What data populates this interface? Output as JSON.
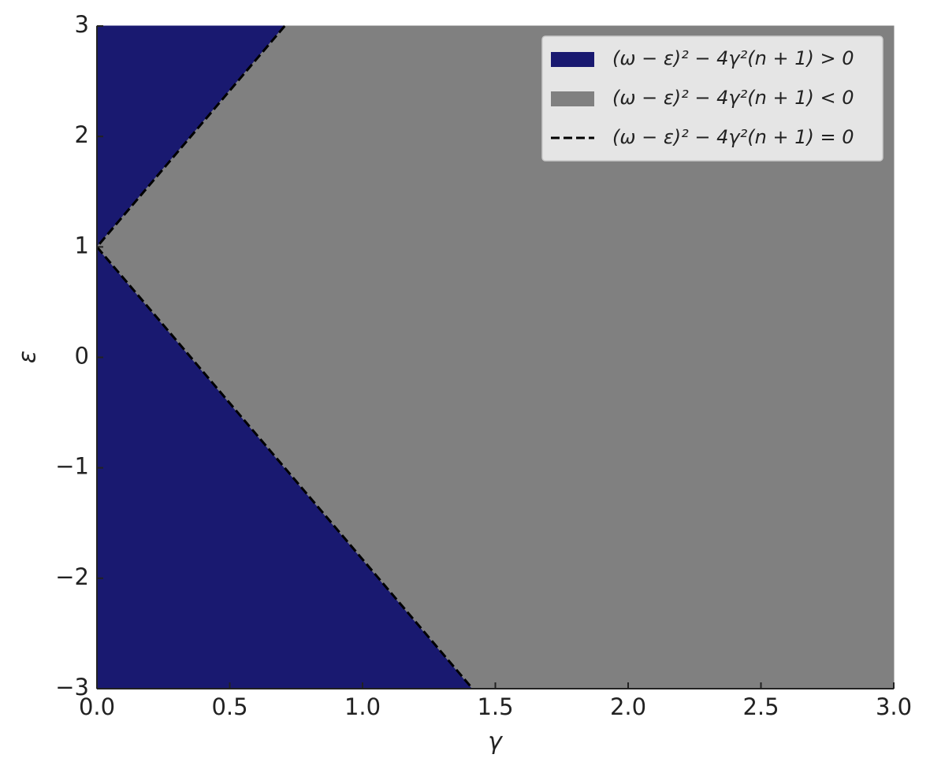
{
  "chart_data": {
    "type": "region",
    "xlabel": "γ",
    "ylabel": "ε",
    "xlim": [
      0,
      3
    ],
    "ylim": [
      -3,
      3
    ],
    "xticks": [
      {
        "value": 0,
        "label": "0.0"
      },
      0.5,
      {
        "value": 1,
        "label": "1.0"
      },
      1.5,
      {
        "value": 2,
        "label": "2.0"
      },
      2.5,
      {
        "value": 3,
        "label": "3.0"
      }
    ],
    "yticks": [
      {
        "value": -3,
        "label": "−3"
      },
      {
        "value": -2,
        "label": "−2"
      },
      {
        "value": -1,
        "label": "−1"
      },
      0,
      1,
      2,
      3
    ],
    "legend": "upper right",
    "series": [
      {
        "name": "(ω − ε)² − 4γ²(n + 1) > 0",
        "color": "#191970",
        "style": "fill",
        "x": [
          0,
          0,
          0.707,
          null,
          0,
          0,
          1.414
        ],
        "values": [
          3,
          1,
          3,
          null,
          1,
          -3,
          -3
        ]
      },
      {
        "name": "(ω − ε)² − 4γ²(n + 1) < 0",
        "color": "#808080",
        "style": "fill",
        "x": [
          0.707,
          0,
          1.414,
          3,
          3
        ],
        "values": [
          3,
          1,
          -3,
          -3,
          3
        ]
      },
      {
        "name": "(ω − ε)² − 4γ²(n + 1) = 0",
        "color": "#000000",
        "style": "dashed",
        "x": [
          0.707,
          0,
          1.414
        ],
        "values": [
          3,
          1,
          -3
        ]
      }
    ]
  }
}
